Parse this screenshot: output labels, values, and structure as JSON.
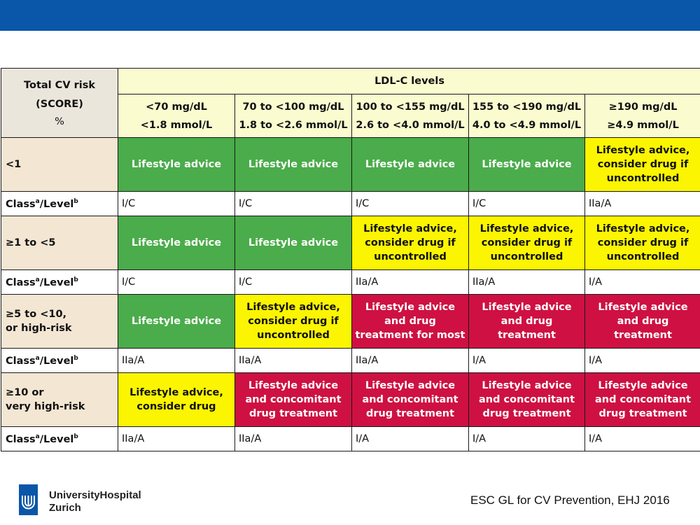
{
  "header_bar_color": "#0a56a8",
  "table": {
    "corner": {
      "line1": "Total CV risk",
      "line2": "(SCORE)",
      "line3": "%"
    },
    "ldl_title": "LDL-C levels",
    "columns": [
      {
        "mg": "<70 mg/dL",
        "mmol": "<1.8 mmol/L"
      },
      {
        "mg": "70 to <100 mg/dL",
        "mmol": "1.8 to <2.6 mmol/L"
      },
      {
        "mg": "100 to <155 mg/dL",
        "mmol": "2.6 to <4.0 mmol/L"
      },
      {
        "mg": "155 to <190 mg/dL",
        "mmol": "4.0 to <4.9 mmol/L"
      },
      {
        "mg": "≥190 mg/dL",
        "mmol": "≥4.9 mmol/L"
      }
    ],
    "class_label": {
      "class": "Class",
      "a": "a",
      "level": "/Level",
      "b": "b"
    },
    "rows": [
      {
        "risk_line1": "<1",
        "risk_line2": "",
        "cells": [
          {
            "color": "green",
            "text": "Lifestyle advice"
          },
          {
            "color": "green",
            "text": "Lifestyle advice"
          },
          {
            "color": "green",
            "text": "Lifestyle advice"
          },
          {
            "color": "green",
            "text": "Lifestyle advice"
          },
          {
            "color": "yellow",
            "text": "Lifestyle advice, consider drug if uncontrolled"
          }
        ],
        "levels": [
          "I/C",
          "I/C",
          "I/C",
          "I/C",
          "IIa/A"
        ]
      },
      {
        "risk_line1": "≥1 to <5",
        "risk_line2": "",
        "cells": [
          {
            "color": "green",
            "text": "Lifestyle advice"
          },
          {
            "color": "green",
            "text": "Lifestyle advice"
          },
          {
            "color": "yellow",
            "text": "Lifestyle advice, consider drug if uncontrolled"
          },
          {
            "color": "yellow",
            "text": "Lifestyle advice, consider drug if uncontrolled"
          },
          {
            "color": "yellow",
            "text": "Lifestyle advice, consider drug if uncontrolled"
          }
        ],
        "levels": [
          "I/C",
          "I/C",
          "IIa/A",
          "IIa/A",
          "I/A"
        ]
      },
      {
        "risk_line1": "≥5 to <10,",
        "risk_line2": "or high-risk",
        "cells": [
          {
            "color": "green",
            "text": "Lifestyle advice"
          },
          {
            "color": "yellow",
            "text": "Lifestyle advice, consider drug if uncontrolled"
          },
          {
            "color": "red",
            "text": "Lifestyle advice and drug treatment for most"
          },
          {
            "color": "red",
            "text": "Lifestyle advice and drug treatment"
          },
          {
            "color": "red",
            "text": "Lifestyle advice and drug treatment"
          }
        ],
        "levels": [
          "IIa/A",
          "IIa/A",
          "IIa/A",
          "I/A",
          "I/A"
        ]
      },
      {
        "risk_line1": "≥10 or",
        "risk_line2": "very high-risk",
        "cells": [
          {
            "color": "yellow",
            "text": "Lifestyle advice, consider drug"
          },
          {
            "color": "red",
            "text": "Lifestyle advice and concomitant drug treatment"
          },
          {
            "color": "red",
            "text": "Lifestyle advice and concomitant drug treatment"
          },
          {
            "color": "red",
            "text": "Lifestyle advice and concomitant drug treatment"
          },
          {
            "color": "red",
            "text": "Lifestyle advice and concomitant drug treatment"
          }
        ],
        "levels": [
          "IIa/A",
          "IIa/A",
          "I/A",
          "I/A",
          "I/A"
        ]
      }
    ]
  },
  "footer": {
    "institution_line1": "UniversityHospital",
    "institution_line2": "Zurich",
    "citation": "ESC GL for CV Prevention, EHJ 2016"
  }
}
